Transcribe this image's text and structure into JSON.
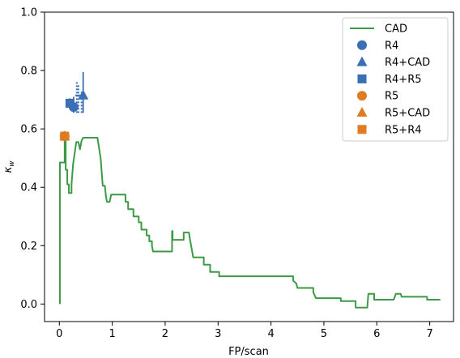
{
  "chart_data": {
    "type": "line",
    "xlabel": "FP/scan",
    "ylabel": "κ",
    "ylabel_sub": "w",
    "xlim": [
      -0.28,
      7.45
    ],
    "ylim": [
      -0.06,
      1.0
    ],
    "xticks": [
      0,
      1,
      2,
      3,
      4,
      5,
      6,
      7
    ],
    "xtick_labels": [
      "0",
      "1",
      "2",
      "3",
      "4",
      "5",
      "6",
      "7"
    ],
    "yticks": [
      0.0,
      0.2,
      0.4,
      0.6,
      0.8,
      1.0
    ],
    "ytick_labels": [
      "0.0",
      "0.2",
      "0.4",
      "0.6",
      "0.8",
      "1.0"
    ],
    "grid": false,
    "legend_position": "top-right",
    "colors": {
      "blue": "#3a6eb5",
      "orange": "#e07b24",
      "green": "#3c9a45"
    },
    "legend": [
      {
        "label": "CAD",
        "kind": "line",
        "color": "#3c9a45"
      },
      {
        "label": "R4",
        "kind": "circle",
        "color": "#3a6eb5"
      },
      {
        "label": "R4+CAD",
        "kind": "triangle",
        "color": "#3a6eb5"
      },
      {
        "label": "R4+R5",
        "kind": "square",
        "color": "#3a6eb5"
      },
      {
        "label": "R5",
        "kind": "circle",
        "color": "#e07b24"
      },
      {
        "label": "R5+CAD",
        "kind": "triangle",
        "color": "#e07b24"
      },
      {
        "label": "R5+R4",
        "kind": "square",
        "color": "#e07b24"
      }
    ],
    "series": [
      {
        "name": "CAD",
        "color": "#3c9a45",
        "points": [
          [
            0.01,
            0.0
          ],
          [
            0.01,
            0.485
          ],
          [
            0.1,
            0.485
          ],
          [
            0.1,
            0.56
          ],
          [
            0.12,
            0.56
          ],
          [
            0.12,
            0.46
          ],
          [
            0.15,
            0.46
          ],
          [
            0.15,
            0.41
          ],
          [
            0.18,
            0.41
          ],
          [
            0.18,
            0.38
          ],
          [
            0.23,
            0.38
          ],
          [
            0.23,
            0.41
          ],
          [
            0.26,
            0.48
          ],
          [
            0.3,
            0.53
          ],
          [
            0.32,
            0.555
          ],
          [
            0.36,
            0.555
          ],
          [
            0.39,
            0.53
          ],
          [
            0.42,
            0.56
          ],
          [
            0.45,
            0.57
          ],
          [
            0.72,
            0.57
          ],
          [
            0.78,
            0.5
          ],
          [
            0.82,
            0.405
          ],
          [
            0.86,
            0.405
          ],
          [
            0.88,
            0.37
          ],
          [
            0.9,
            0.35
          ],
          [
            0.95,
            0.35
          ],
          [
            0.98,
            0.375
          ],
          [
            1.25,
            0.375
          ],
          [
            1.25,
            0.35
          ],
          [
            1.3,
            0.35
          ],
          [
            1.3,
            0.325
          ],
          [
            1.4,
            0.325
          ],
          [
            1.4,
            0.3
          ],
          [
            1.5,
            0.3
          ],
          [
            1.5,
            0.28
          ],
          [
            1.55,
            0.28
          ],
          [
            1.55,
            0.255
          ],
          [
            1.65,
            0.255
          ],
          [
            1.65,
            0.235
          ],
          [
            1.7,
            0.235
          ],
          [
            1.7,
            0.215
          ],
          [
            1.75,
            0.215
          ],
          [
            1.75,
            0.2
          ],
          [
            1.77,
            0.18
          ],
          [
            2.13,
            0.18
          ],
          [
            2.13,
            0.25
          ],
          [
            2.14,
            0.25
          ],
          [
            2.14,
            0.22
          ],
          [
            2.35,
            0.22
          ],
          [
            2.35,
            0.245
          ],
          [
            2.45,
            0.245
          ],
          [
            2.47,
            0.22
          ],
          [
            2.53,
            0.16
          ],
          [
            2.73,
            0.16
          ],
          [
            2.73,
            0.135
          ],
          [
            2.85,
            0.135
          ],
          [
            2.85,
            0.11
          ],
          [
            3.02,
            0.11
          ],
          [
            3.02,
            0.095
          ],
          [
            4.42,
            0.095
          ],
          [
            4.42,
            0.08
          ],
          [
            4.48,
            0.07
          ],
          [
            4.5,
            0.055
          ],
          [
            4.8,
            0.055
          ],
          [
            4.8,
            0.04
          ],
          [
            4.85,
            0.02
          ],
          [
            5.32,
            0.02
          ],
          [
            5.32,
            0.01
          ],
          [
            5.6,
            0.01
          ],
          [
            5.6,
            -0.012
          ],
          [
            5.82,
            -0.012
          ],
          [
            5.84,
            0.035
          ],
          [
            5.95,
            0.035
          ],
          [
            5.95,
            0.015
          ],
          [
            6.32,
            0.015
          ],
          [
            6.36,
            0.035
          ],
          [
            6.45,
            0.035
          ],
          [
            6.47,
            0.025
          ],
          [
            6.95,
            0.025
          ],
          [
            6.95,
            0.015
          ],
          [
            7.2,
            0.015
          ]
        ]
      }
    ],
    "markers": [
      {
        "name": "R4",
        "shape": "circle",
        "color": "#3a6eb5",
        "x": 0.27,
        "y": 0.675,
        "xerr": [
          0.22,
          0.32
        ],
        "yerr": [
          0.655,
          0.71
        ]
      },
      {
        "name": "R4+CAD",
        "shape": "triangle",
        "color": "#3a6eb5",
        "x": 0.45,
        "y": 0.715,
        "xerr": [
          0.3,
          0.5
        ],
        "yerr": [
          0.655,
          0.795
        ]
      },
      {
        "name": "R4+R5",
        "shape": "square",
        "color": "#3a6eb5",
        "x": 0.2,
        "y": 0.688,
        "xerr": [
          0.15,
          0.28
        ],
        "yerr": [
          0.67,
          0.705
        ]
      },
      {
        "name": "R5",
        "shape": "circle",
        "color": "#e07b24",
        "x": 0.1,
        "y": 0.575
      },
      {
        "name": "R5+CAD",
        "shape": "triangle",
        "color": "#e07b24",
        "x": 0.1,
        "y": 0.575
      },
      {
        "name": "R5+R4",
        "shape": "square",
        "color": "#e07b24",
        "x": 0.1,
        "y": 0.575
      }
    ],
    "dotted_bands": [
      {
        "color": "#3a6eb5",
        "x": 0.33,
        "y": [
          0.655,
          0.76
        ]
      },
      {
        "color": "#3a6eb5",
        "x": 0.36,
        "y": [
          0.655,
          0.755
        ]
      },
      {
        "color": "#3a6eb5",
        "x": 0.42,
        "y": [
          0.655,
          0.73
        ]
      }
    ]
  }
}
